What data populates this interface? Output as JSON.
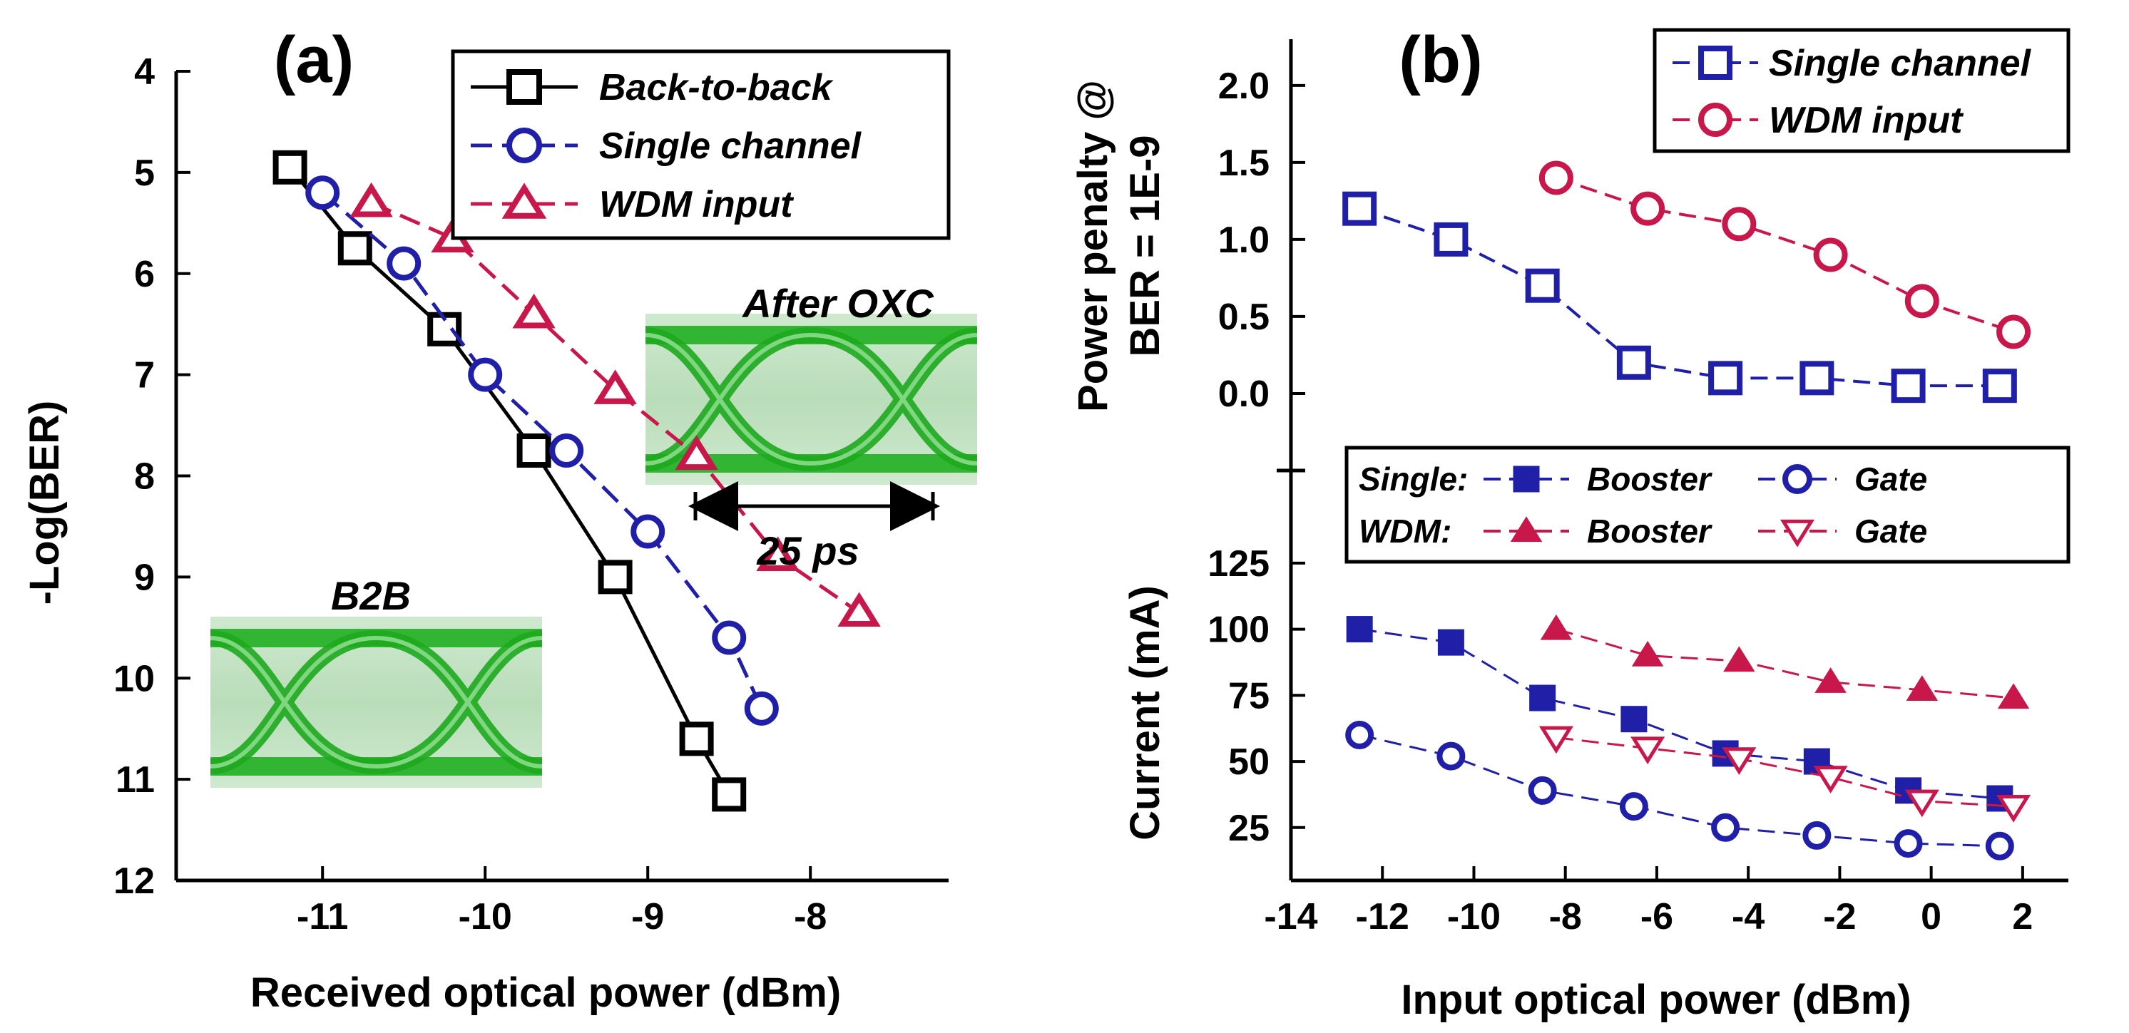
{
  "chart_data": [
    {
      "panel": "(a)",
      "type": "line",
      "xlabel": "Received optical power (dBm)",
      "ylabel": "-Log(BER)",
      "xlim": [
        -11.9,
        -7.15
      ],
      "ylim": [
        4,
        12
      ],
      "y_inverted": true,
      "x_ticks": [
        -11,
        -10,
        -9,
        -8
      ],
      "y_ticks": [
        4,
        5,
        6,
        7,
        8,
        9,
        10,
        11,
        12
      ],
      "legend_position": "top-right",
      "series": [
        {
          "name": "Back-to-back",
          "color": "#000000",
          "marker": "square",
          "x": [
            -11.2,
            -10.8,
            -10.25,
            -9.7,
            -9.2,
            -8.7,
            -8.5
          ],
          "y": [
            4.95,
            5.75,
            6.55,
            7.75,
            9.0,
            10.6,
            11.15
          ]
        },
        {
          "name": "Single channel",
          "color": "#1f1fa8",
          "marker": "circle",
          "x": [
            -11.0,
            -10.5,
            -10.0,
            -9.5,
            -9.0,
            -8.5,
            -8.3
          ],
          "y": [
            5.2,
            5.9,
            7.0,
            7.75,
            8.55,
            9.6,
            10.3
          ]
        },
        {
          "name": "WDM input",
          "color": "#c8174a",
          "marker": "triangle",
          "x": [
            -10.7,
            -10.2,
            -9.7,
            -9.2,
            -8.7,
            -8.2,
            -7.7
          ],
          "y": [
            5.3,
            5.65,
            6.4,
            7.15,
            7.8,
            8.8,
            9.35
          ]
        }
      ],
      "annotations": [
        "After OXC",
        "25 ps",
        "B2B"
      ]
    },
    {
      "panel": "(b)",
      "type": "line",
      "xlabel": "Input optical power (dBm)",
      "x_ticks": [
        -14,
        -12,
        -10,
        -8,
        -6,
        -4,
        -2,
        0,
        2
      ],
      "xlim": [
        -14,
        3
      ],
      "subplots": [
        {
          "ylabel": "Power penalty @ BER = 1E-9",
          "ylabel_line1": "Power penalty @",
          "ylabel_line2": "BER = 1E-9",
          "ylim": [
            -0.5,
            2.3
          ],
          "y_ticks": [
            "0.0",
            "0.5",
            "1.0",
            "1.5",
            "2.0"
          ],
          "y_tick_values": [
            0.0,
            0.5,
            1.0,
            1.5,
            2.0
          ],
          "legend_position": "top-right",
          "series": [
            {
              "name": "Single channel",
              "color": "#1f1fa8",
              "marker": "square-open",
              "x": [
                -12.5,
                -10.5,
                -8.5,
                -6.5,
                -4.5,
                -2.5,
                -0.5,
                1.5
              ],
              "y": [
                1.2,
                1.0,
                0.7,
                0.2,
                0.1,
                0.1,
                0.05,
                0.05
              ]
            },
            {
              "name": "WDM input",
              "color": "#c8174a",
              "marker": "circle-open",
              "x": [
                -8.2,
                -6.2,
                -4.2,
                -2.2,
                -0.2,
                1.8
              ],
              "y": [
                1.4,
                1.2,
                1.1,
                0.9,
                0.6,
                0.4
              ]
            }
          ]
        },
        {
          "ylabel": "Current (mA)",
          "ylim": [
            5,
            160
          ],
          "y_ticks": [
            25,
            50,
            75,
            100,
            125
          ],
          "legend_position": "top-right",
          "legend_groups": [
            "Single:",
            "WDM:"
          ],
          "series": [
            {
              "name": "Booster",
              "group": "Single:",
              "color": "#1f1fa8",
              "marker": "square-filled",
              "x": [
                -12.5,
                -10.5,
                -8.5,
                -6.5,
                -4.5,
                -2.5,
                -0.5,
                1.5
              ],
              "y": [
                100,
                95,
                74,
                66,
                53,
                50,
                39,
                36
              ]
            },
            {
              "name": "Gate",
              "group": "Single:",
              "color": "#1f1fa8",
              "marker": "circle-open",
              "x": [
                -12.5,
                -10.5,
                -8.5,
                -6.5,
                -4.5,
                -2.5,
                -0.5,
                1.5
              ],
              "y": [
                60,
                52,
                39,
                33,
                25,
                22,
                19,
                18
              ]
            },
            {
              "name": "Booster",
              "group": "WDM:",
              "color": "#c8174a",
              "marker": "triangle-filled",
              "x": [
                -8.2,
                -6.2,
                -4.2,
                -2.2,
                -0.2,
                1.8
              ],
              "y": [
                100,
                90,
                88,
                80,
                77,
                74
              ]
            },
            {
              "name": "Gate",
              "group": "WDM:",
              "color": "#c8174a",
              "marker": "triangle-down-open",
              "x": [
                -8.2,
                -6.2,
                -4.2,
                -2.2,
                -0.2,
                1.8
              ],
              "y": [
                59,
                55,
                51,
                44,
                35,
                33
              ]
            }
          ]
        }
      ]
    }
  ]
}
